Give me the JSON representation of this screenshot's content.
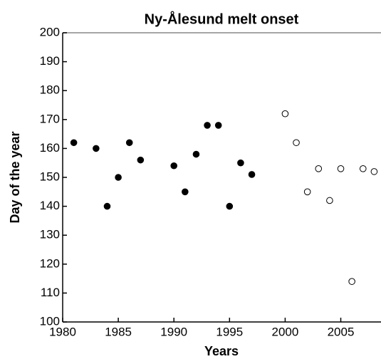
{
  "chart_data": {
    "type": "scatter",
    "title": "Ny-Ålesund melt onset",
    "x_label": "Years",
    "y_label": "Day of the year",
    "xlim": [
      1980,
      2009
    ],
    "ylim": [
      100,
      200
    ],
    "xticks": [
      1980,
      1985,
      1990,
      1995,
      2000,
      2005
    ],
    "yticks": [
      100,
      110,
      120,
      130,
      140,
      150,
      160,
      170,
      180,
      190,
      200
    ],
    "series": [
      {
        "color": "#000000",
        "filled": true,
        "x": [
          1981,
          1983,
          1984,
          1985,
          1986,
          1987,
          1990,
          1991,
          1992,
          1993,
          1994,
          1995,
          1996,
          1997
        ],
        "values": [
          162,
          160,
          140,
          150,
          162,
          156,
          154,
          145,
          158,
          168,
          168,
          140,
          155,
          151
        ]
      },
      {
        "color": "#000000",
        "filled": false,
        "x": [
          2000,
          2001,
          2002,
          2003,
          2004,
          2005,
          2006,
          2007,
          2008
        ],
        "values": [
          172,
          162,
          145,
          153,
          142,
          153,
          114,
          153,
          152
        ]
      }
    ]
  }
}
